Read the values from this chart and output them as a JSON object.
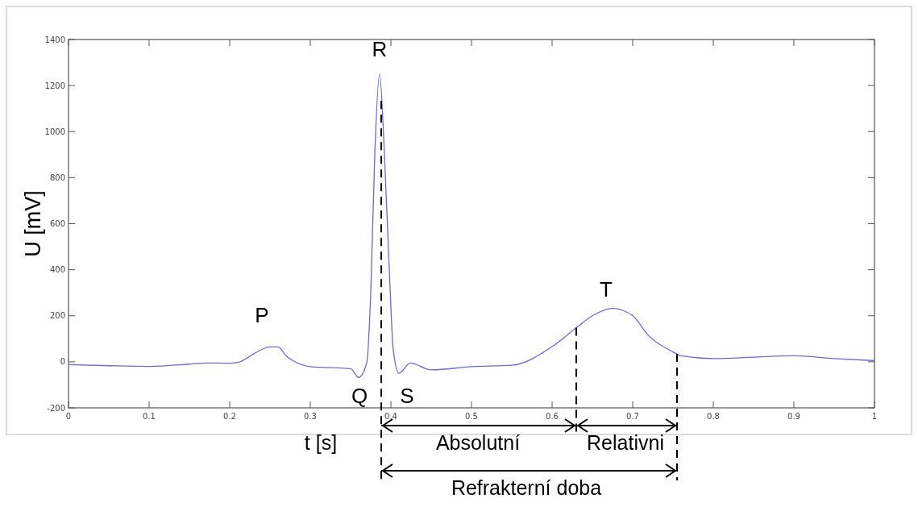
{
  "chart_data": {
    "type": "line",
    "xlabel": "t [s]",
    "ylabel": "U [mV]",
    "x": [
      0,
      0.05,
      0.1,
      0.15,
      0.17,
      0.2,
      0.21,
      0.23,
      0.25,
      0.26,
      0.27,
      0.28,
      0.3,
      0.35,
      0.36,
      0.37,
      0.375,
      0.38,
      0.386,
      0.392,
      0.398,
      0.403,
      0.41,
      0.424,
      0.45,
      0.5,
      0.55,
      0.6,
      0.63,
      0.65,
      0.675,
      0.7,
      0.72,
      0.75,
      0.76,
      0.8,
      0.85,
      0.9,
      0.95,
      1.0
    ],
    "series": [
      {
        "color": "#6b6bc8",
        "values": [
          -12,
          -17,
          -20,
          -10,
          -5,
          -6,
          -3,
          35,
          65,
          65,
          26,
          2,
          -21,
          -30,
          -68,
          -4,
          300,
          900,
          1250,
          900,
          400,
          50,
          -50,
          -5,
          -35,
          -21,
          -15,
          66,
          148,
          200,
          232,
          200,
          113,
          43,
          26,
          14,
          20,
          26,
          14,
          5
        ]
      }
    ],
    "xlim": [
      0,
      1
    ],
    "xticks": [
      0,
      0.1,
      0.2,
      0.3,
      0.4,
      0.5,
      0.6,
      0.7,
      0.8,
      0.9,
      1
    ],
    "ylim": [
      -200,
      1400
    ],
    "yticks": [
      -200,
      0,
      200,
      400,
      600,
      800,
      1000,
      1200,
      1400
    ],
    "grid": false,
    "line_style": "solid",
    "marker": "none",
    "ref_lines": [
      {
        "axis": "x",
        "value": 0.388,
        "label": null,
        "color": "#000000",
        "line_style": "dashed"
      },
      {
        "axis": "x",
        "value": 0.63,
        "label": null,
        "color": "#000000",
        "line_style": "dashed"
      },
      {
        "axis": "x",
        "value": 0.755,
        "label": null,
        "color": "#000000",
        "line_style": "dashed"
      }
    ],
    "annotations": [
      "P",
      "Q",
      "R",
      "S",
      "T",
      "Absolutní",
      "Relativni",
      "Refrakterní doba"
    ]
  }
}
